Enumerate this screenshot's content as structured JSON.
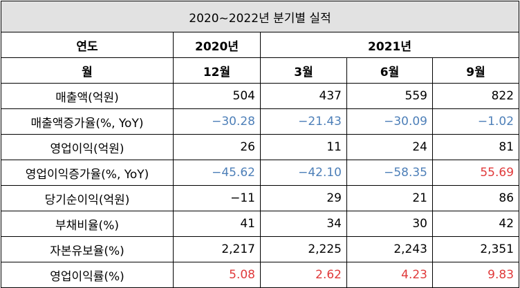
{
  "title": "2020~2022년 분기별 실적",
  "header": {
    "year_label": "연도",
    "month_label": "월",
    "year_2020": "2020년",
    "year_2021": "2021년",
    "months": [
      "12월",
      "3월",
      "6월",
      "9월"
    ]
  },
  "rows": [
    {
      "label": "매출액(억원)",
      "values": [
        "504",
        "437",
        "559",
        "822"
      ],
      "tones": [
        "plain",
        "plain",
        "plain",
        "plain"
      ]
    },
    {
      "label": "매출액증가율(%, YoY)",
      "values": [
        "−30.28",
        "−21.43",
        "−30.09",
        "−1.02"
      ],
      "tones": [
        "neg",
        "neg",
        "neg",
        "neg"
      ]
    },
    {
      "label": "영업이익(억원)",
      "values": [
        "26",
        "11",
        "24",
        "81"
      ],
      "tones": [
        "plain",
        "plain",
        "plain",
        "plain"
      ]
    },
    {
      "label": "영업이익증가율(%, YoY)",
      "values": [
        "−45.62",
        "−42.10",
        "−58.35",
        "55.69"
      ],
      "tones": [
        "neg",
        "neg",
        "neg",
        "red"
      ]
    },
    {
      "label": "당기순이익(억원)",
      "values": [
        "−11",
        "29",
        "21",
        "86"
      ],
      "tones": [
        "plain",
        "plain",
        "plain",
        "plain"
      ]
    },
    {
      "label": "부채비율(%)",
      "values": [
        "41",
        "34",
        "30",
        "42"
      ],
      "tones": [
        "plain",
        "plain",
        "plain",
        "plain"
      ]
    },
    {
      "label": "자본유보율(%)",
      "values": [
        "2,217",
        "2,225",
        "2,243",
        "2,351"
      ],
      "tones": [
        "plain",
        "plain",
        "plain",
        "plain"
      ]
    },
    {
      "label": "영업이익률(%)",
      "values": [
        "5.08",
        "2.62",
        "4.23",
        "9.83"
      ],
      "tones": [
        "red",
        "red",
        "red",
        "red"
      ]
    }
  ],
  "colors": {
    "title_bg": "#e2e2e2",
    "header_purple": "#efd7fb",
    "header_purple_light": "#f6e6fc",
    "negative_blue": "#4d7fb8",
    "highlight_red": "#e0393a"
  }
}
